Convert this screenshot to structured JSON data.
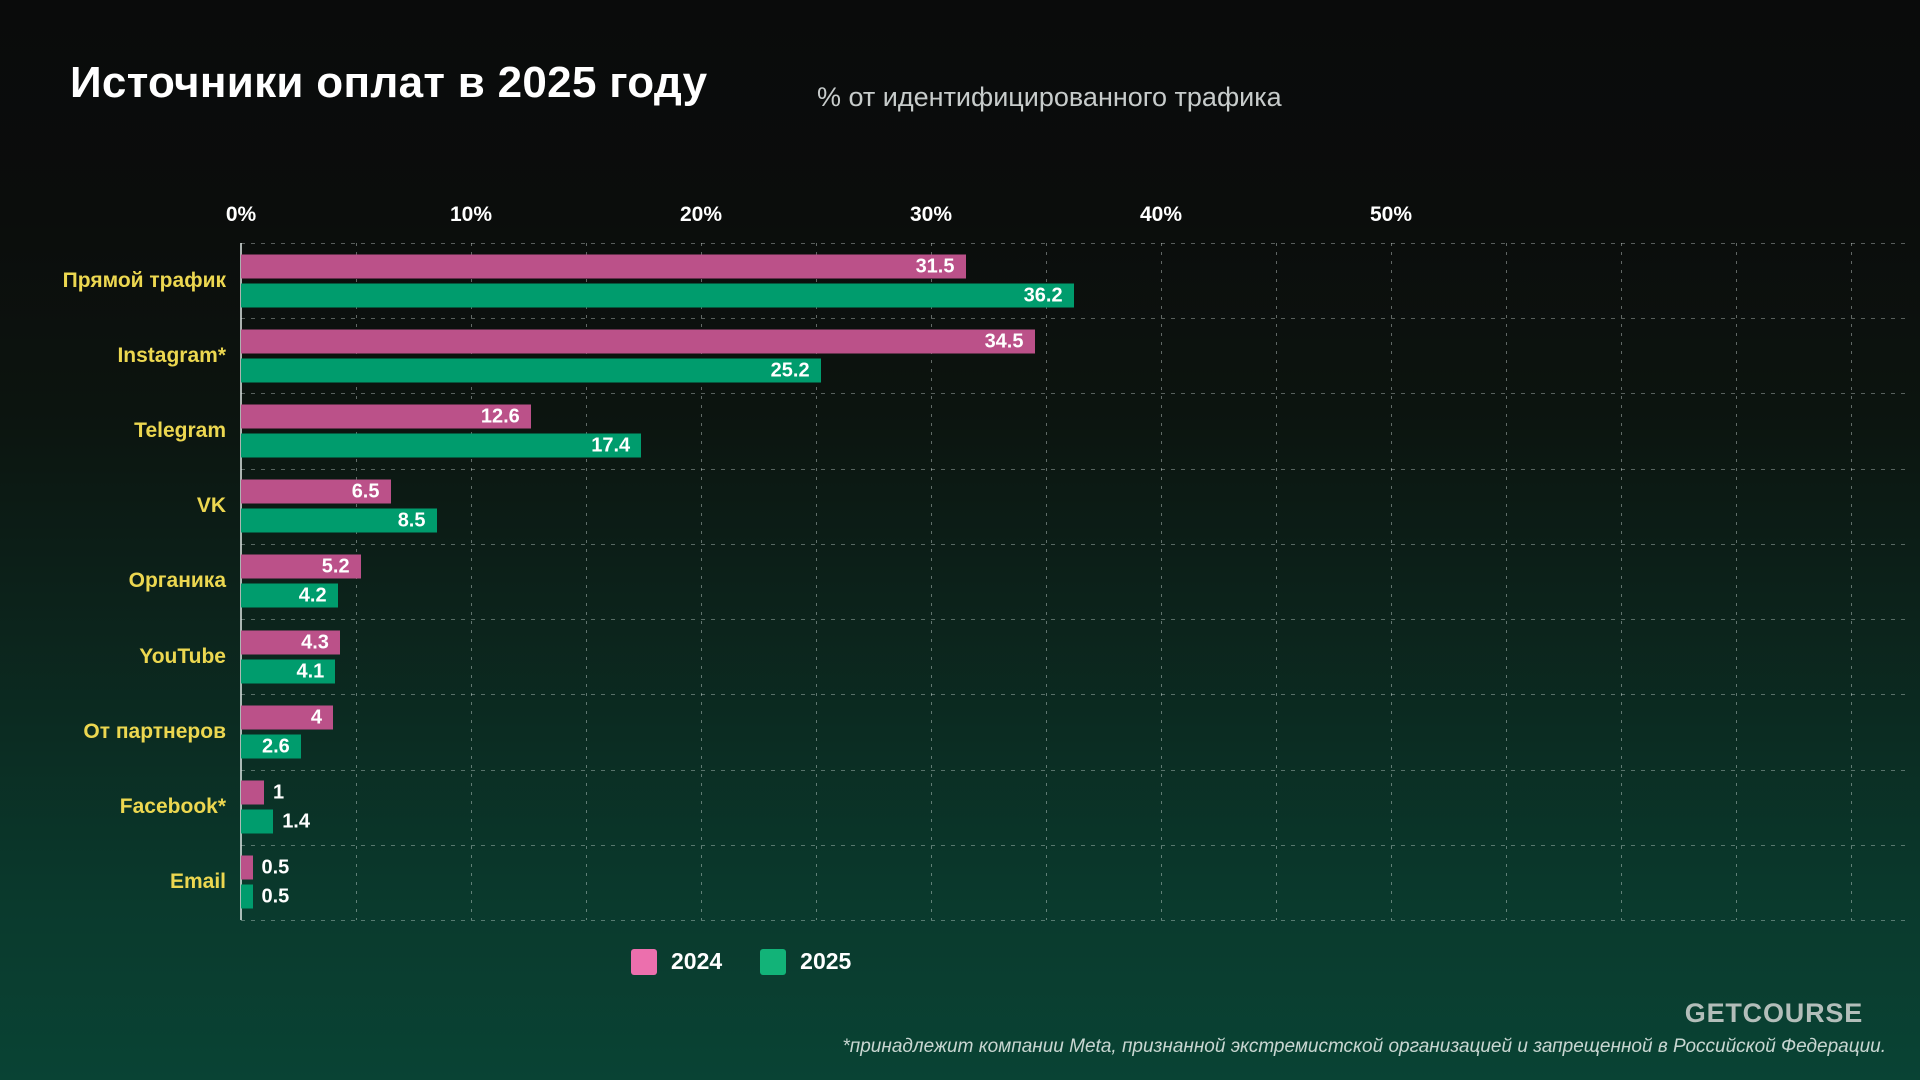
{
  "header": {
    "title": "Источники оплат в 2025 году",
    "subtitle": "% от идентифицированного трафика"
  },
  "chart_data": {
    "type": "bar",
    "orientation": "horizontal",
    "title": "Источники оплат в 2025 году",
    "subtitle": "% от идентифицированного трафика",
    "categories": [
      "Прямой трафик",
      "Instagram*",
      "Telegram",
      "VK",
      "Органика",
      "YouTube",
      "От партнеров",
      "Facebook*",
      "Email"
    ],
    "series": [
      {
        "name": "2024",
        "color": "#bb5189",
        "values": [
          31.5,
          34.5,
          12.6,
          6.5,
          5.2,
          4.3,
          4,
          1,
          0.5
        ]
      },
      {
        "name": "2025",
        "color": "#009c6d",
        "values": [
          36.2,
          25.2,
          17.4,
          8.5,
          4.2,
          4.1,
          2.6,
          1.4,
          0.5
        ]
      }
    ],
    "x_ticks": [
      "0%",
      "10%",
      "20%",
      "30%",
      "40%",
      "50%"
    ],
    "xlim": [
      0,
      50
    ],
    "minor_step": 5,
    "grid": "dashed",
    "value_labels": true,
    "legend_position": "bottom"
  },
  "legend": {
    "items": [
      {
        "label": "2024",
        "color": "#ec6fad"
      },
      {
        "label": "2025",
        "color": "#12b378"
      }
    ]
  },
  "footer": {
    "note": "*принадлежит компании Meta, признанной экстремистской организацией и запрещенной в Российской Федерации.",
    "brand": "GETCOURSE"
  },
  "colors": {
    "category_label": "#ecd750",
    "bar_2024": "#bb5189",
    "bar_2025": "#009c6d",
    "background_top": "#0a0b0b",
    "background_bottom": "#094334",
    "title": "#ffffff",
    "subtitle": "#c7cccb"
  }
}
